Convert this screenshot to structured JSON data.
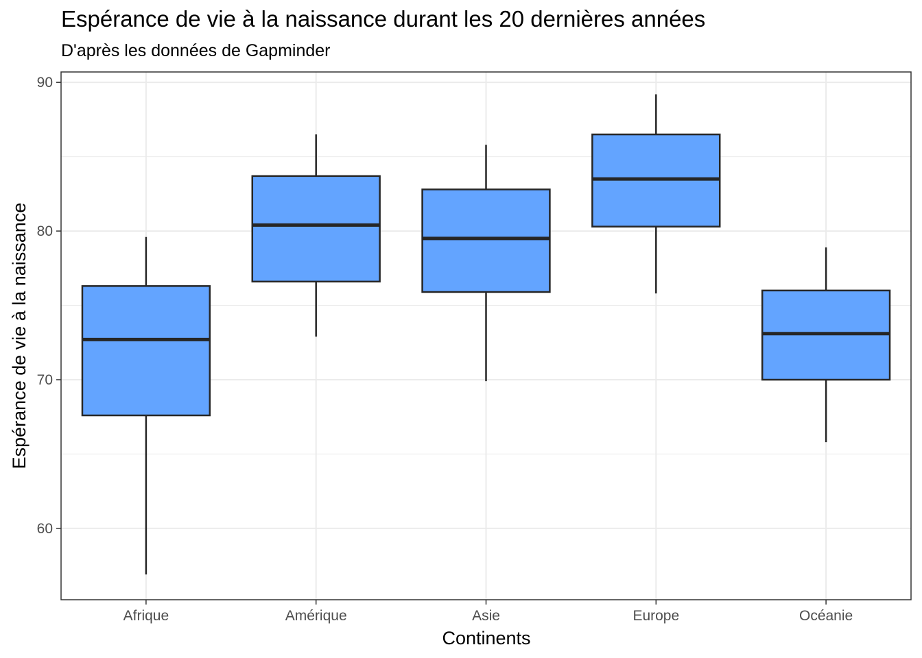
{
  "chart_data": {
    "type": "boxplot",
    "title": "Espérance de vie à la naissance durant les 20 dernières années",
    "subtitle": "D'après les données de Gapminder",
    "xlabel": "Continents",
    "ylabel": "Espérance de vie à la naissance",
    "categories": [
      "Afrique",
      "Amérique",
      "Asie",
      "Europe",
      "Océanie"
    ],
    "boxes": [
      {
        "category": "Afrique",
        "min": 56.9,
        "q1": 67.6,
        "median": 72.7,
        "q3": 76.3,
        "max": 79.6
      },
      {
        "category": "Amérique",
        "min": 72.9,
        "q1": 76.6,
        "median": 80.4,
        "q3": 83.7,
        "max": 86.5
      },
      {
        "category": "Asie",
        "min": 69.9,
        "q1": 75.9,
        "median": 79.5,
        "q3": 82.8,
        "max": 85.8
      },
      {
        "category": "Europe",
        "min": 75.8,
        "q1": 80.3,
        "median": 83.5,
        "q3": 86.5,
        "max": 89.2
      },
      {
        "category": "Océanie",
        "min": 65.8,
        "q1": 70.0,
        "median": 73.1,
        "q3": 76.0,
        "max": 78.9
      }
    ],
    "ylim": [
      55.2,
      90.7
    ],
    "yticks": [
      60,
      70,
      80,
      90
    ],
    "ytick_labels": [
      "60",
      "70",
      "80",
      "90"
    ],
    "grid": true,
    "colors": {
      "box_fill": "#63a4ff",
      "box_stroke": "#262626",
      "grid": "#ebebeb",
      "panel_border": "#333333",
      "tick_label": "#4d4d4d"
    }
  }
}
